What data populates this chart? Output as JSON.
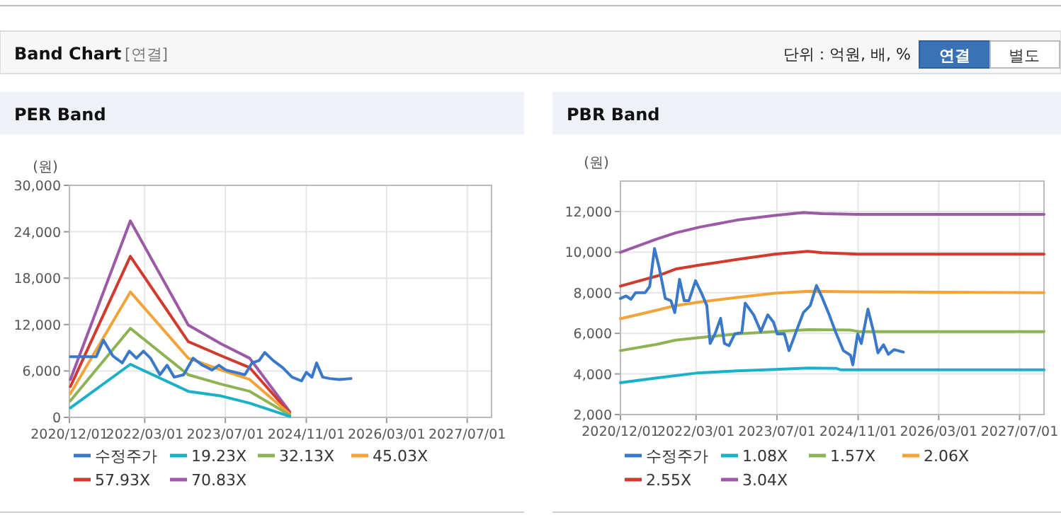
{
  "chart_data": [
    {
      "type": "other",
      "title": "Band Chart",
      "annotations": [
        "[연결]",
        "단위 : 억원, 배, %",
        "연결",
        "별도"
      ]
    },
    {
      "type": "line",
      "title": "PER Band",
      "ylabel": "(원)",
      "xlim": [
        "2020-12-01",
        "2027-11-25"
      ],
      "ylim": [
        0,
        30000
      ],
      "xticks": [
        {
          "value": "2020-12-01",
          "label": "2020/12/01"
        },
        {
          "value": "2022-03-01",
          "label": "2022/03/01"
        },
        {
          "value": "2023-07-01",
          "label": "2023/07/01"
        },
        {
          "value": "2024-11-01",
          "label": "2024/11/01"
        },
        {
          "value": "2026-03-01",
          "label": "2026/03/01"
        },
        {
          "value": "2027-07-01",
          "label": "2027/07/01"
        }
      ],
      "yticks": [
        {
          "value": 0,
          "label": "0"
        },
        {
          "value": 6000,
          "label": "6,000"
        },
        {
          "value": 12000,
          "label": "12,000"
        },
        {
          "value": 18000,
          "label": "18,000"
        },
        {
          "value": 24000,
          "label": "24,000"
        },
        {
          "value": 30000,
          "label": "30,000"
        }
      ],
      "grid": true,
      "legend": "bottom",
      "marker": "none",
      "line_style": "solid",
      "series": [
        {
          "name": "수정주가",
          "color": "#3a78c9",
          "x": [
            "2020-12-07",
            "2021-05-12",
            "2021-06-24",
            "2021-08-20",
            "2021-10-16",
            "2021-11-28",
            "2022-01-10",
            "2022-02-21",
            "2022-04-05",
            "2022-06-01",
            "2022-07-14",
            "2022-08-26",
            "2022-10-22",
            "2022-12-18",
            "2023-02-13",
            "2023-04-11",
            "2023-05-23",
            "2023-07-05",
            "2023-08-31",
            "2023-10-27",
            "2023-12-09",
            "2024-01-21",
            "2024-02-24",
            "2024-04-15",
            "2024-06-11",
            "2024-08-07",
            "2024-10-03",
            "2024-11-01",
            "2024-12-05",
            "2025-01-02",
            "2025-02-08",
            "2025-03-23",
            "2025-05-19",
            "2025-07-29"
          ],
          "values": [
            7840,
            7840,
            9980,
            7960,
            7040,
            8570,
            7650,
            8570,
            7650,
            5510,
            6740,
            5200,
            5510,
            7650,
            6740,
            6120,
            6740,
            6120,
            5820,
            5510,
            7040,
            7350,
            8390,
            7350,
            6430,
            5200,
            4710,
            5820,
            5200,
            7040,
            5200,
            5020,
            4900,
            5020
          ]
        },
        {
          "name": "19.23X",
          "color": "#1ab0c8",
          "x": [
            "2020-12-07",
            "2021-12-04",
            "2022-11-19",
            "2023-06-07",
            "2023-11-25",
            "2024-07-24"
          ],
          "values": [
            1220,
            6860,
            3370,
            2760,
            1840,
            120
          ]
        },
        {
          "name": "32.13X",
          "color": "#8db355",
          "x": [
            "2020-12-07",
            "2021-12-04",
            "2022-11-19",
            "2023-06-07",
            "2023-11-25",
            "2024-07-24"
          ],
          "values": [
            2140,
            11510,
            5510,
            4290,
            3370,
            310
          ]
        },
        {
          "name": "45.03X",
          "color": "#f2a33a",
          "x": [
            "2020-12-07",
            "2021-12-04",
            "2022-11-19",
            "2023-06-07",
            "2023-11-25",
            "2024-07-24"
          ],
          "values": [
            3060,
            16220,
            7650,
            6120,
            4900,
            430
          ]
        },
        {
          "name": "57.93X",
          "color": "#d23a2e",
          "x": [
            "2020-12-07",
            "2021-12-04",
            "2022-11-19",
            "2023-06-07",
            "2023-11-25",
            "2024-07-24"
          ],
          "values": [
            3980,
            20820,
            9800,
            7960,
            6430,
            550
          ]
        },
        {
          "name": "70.83X",
          "color": "#9b59a6",
          "x": [
            "2020-12-07",
            "2021-12-04",
            "2022-11-19",
            "2023-06-07",
            "2023-11-25",
            "2024-07-24"
          ],
          "values": [
            4900,
            25400,
            11940,
            9490,
            7650,
            730
          ]
        }
      ]
    },
    {
      "type": "line",
      "title": "PBR Band",
      "ylabel": "(원)",
      "xlim": [
        "2020-12-01",
        "2027-11-25"
      ],
      "ylim": [
        2000,
        13500
      ],
      "xticks": [
        {
          "value": "2020-12-01",
          "label": "2020/12/01"
        },
        {
          "value": "2022-03-01",
          "label": "2022/03/01"
        },
        {
          "value": "2023-07-01",
          "label": "2023/07/01"
        },
        {
          "value": "2024-11-01",
          "label": "2024/11/01"
        },
        {
          "value": "2026-03-01",
          "label": "2026/03/01"
        },
        {
          "value": "2027-07-01",
          "label": "2027/07/01"
        }
      ],
      "yticks": [
        {
          "value": 2000,
          "label": "2,000"
        },
        {
          "value": 4000,
          "label": "4,000"
        },
        {
          "value": 6000,
          "label": "6,000"
        },
        {
          "value": 8000,
          "label": "8,000"
        },
        {
          "value": 10000,
          "label": "10,000"
        },
        {
          "value": 12000,
          "label": "12,000"
        }
      ],
      "grid": true,
      "legend": "bottom",
      "marker": "none",
      "line_style": "solid",
      "series": [
        {
          "name": "수정주가",
          "color": "#3a78c9",
          "x": [
            "2020-12-01",
            "2021-01-04",
            "2021-02-02",
            "2021-03-02",
            "2021-04-28",
            "2021-05-26",
            "2021-06-24",
            "2021-07-22",
            "2021-08-28",
            "2021-10-01",
            "2021-10-24",
            "2021-11-22",
            "2021-12-20",
            "2022-01-17",
            "2022-02-26",
            "2022-04-04",
            "2022-05-05",
            "2022-05-25",
            "2022-06-23",
            "2022-07-27",
            "2022-08-19",
            "2022-09-16",
            "2022-10-20",
            "2022-12-02",
            "2022-12-22",
            "2023-02-11",
            "2023-03-26",
            "2023-05-07",
            "2023-06-10",
            "2023-07-03",
            "2023-08-15",
            "2023-09-12",
            "2023-10-25",
            "2023-12-07",
            "2024-01-18",
            "2024-02-24",
            "2024-03-29",
            "2024-05-11",
            "2024-06-23",
            "2024-08-04",
            "2024-09-16",
            "2024-09-30",
            "2024-10-29",
            "2024-11-20",
            "2024-12-30",
            "2025-02-05",
            "2025-02-28",
            "2025-04-03",
            "2025-05-02",
            "2025-06-05",
            "2025-07-31"
          ],
          "values": [
            7720,
            7840,
            7680,
            8000,
            8000,
            8310,
            10180,
            9240,
            7720,
            7610,
            7020,
            8660,
            7610,
            7610,
            8590,
            7960,
            7370,
            5500,
            5970,
            6740,
            5500,
            5390,
            5970,
            6040,
            7490,
            6910,
            6090,
            6910,
            6560,
            5970,
            5970,
            5150,
            6090,
            7020,
            7370,
            8360,
            7770,
            6910,
            5970,
            5150,
            4920,
            4450,
            5970,
            5500,
            7190,
            5970,
            5040,
            5440,
            4970,
            5200,
            5080
          ]
        },
        {
          "name": "1.08X",
          "color": "#1ab0c8",
          "x": [
            "2020-12-01",
            "2021-07-08",
            "2022-03-21",
            "2022-11-03",
            "2023-06-19",
            "2024-01-04",
            "2024-06-23",
            "2024-07-21",
            "2027-11-25"
          ],
          "values": [
            3570,
            3800,
            4060,
            4150,
            4220,
            4290,
            4270,
            4200,
            4200
          ]
        },
        {
          "name": "1.57X",
          "color": "#8db355",
          "x": [
            "2020-12-01",
            "2021-07-08",
            "2021-10-30",
            "2022-03-21",
            "2022-11-03",
            "2023-06-19",
            "2024-01-04",
            "2024-09-16",
            "2024-11-03",
            "2027-11-25"
          ],
          "values": [
            5150,
            5460,
            5670,
            5790,
            5970,
            6090,
            6180,
            6160,
            6090,
            6090
          ]
        },
        {
          "name": "2.06X",
          "color": "#f2a33a",
          "x": [
            "2020-12-01",
            "2021-07-08",
            "2021-10-30",
            "2022-03-21",
            "2022-11-03",
            "2023-06-19",
            "2024-01-04",
            "2024-11-03",
            "2027-11-25"
          ],
          "values": [
            6720,
            7140,
            7370,
            7540,
            7770,
            7980,
            8070,
            8050,
            8000
          ]
        },
        {
          "name": "2.55X",
          "color": "#d23a2e",
          "x": [
            "2020-12-01",
            "2021-07-08",
            "2021-10-30",
            "2022-03-21",
            "2022-11-03",
            "2023-06-19",
            "2024-01-04",
            "2024-03-29",
            "2024-11-03",
            "2027-11-25"
          ],
          "values": [
            8330,
            8820,
            9170,
            9360,
            9640,
            9900,
            10040,
            9970,
            9900,
            9900
          ]
        },
        {
          "name": "3.04X",
          "color": "#9b59a6",
          "x": [
            "2020-12-01",
            "2021-07-08",
            "2021-10-30",
            "2022-03-21",
            "2022-11-03",
            "2023-06-19",
            "2023-12-07",
            "2024-03-29",
            "2024-11-03",
            "2027-11-25"
          ],
          "values": [
            9990,
            10645,
            10950,
            11230,
            11580,
            11810,
            11950,
            11900,
            11860,
            11860
          ]
        }
      ]
    }
  ]
}
